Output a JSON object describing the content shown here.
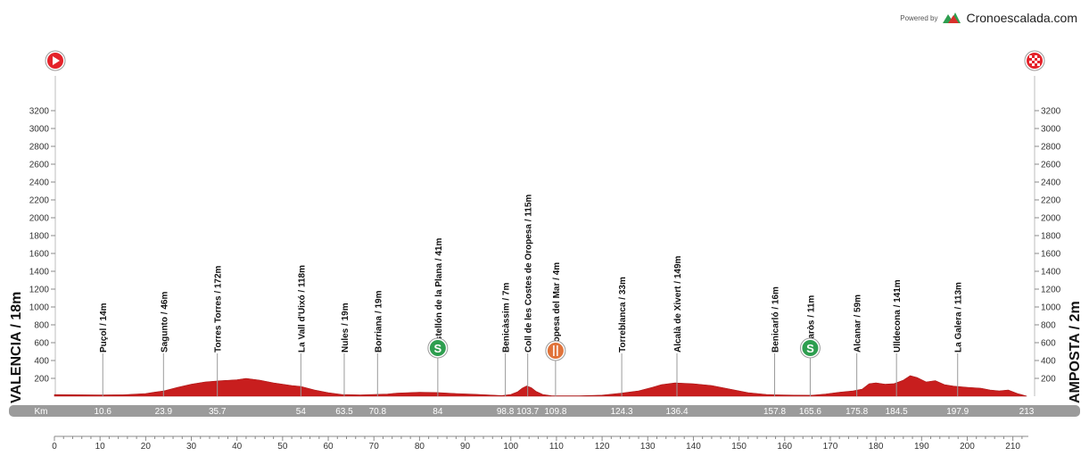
{
  "brand": {
    "powered_by": "Powered by",
    "name": "Cronoescalada.com"
  },
  "chart_data": {
    "type": "area",
    "title": "",
    "start_label": "VALENCIA / 18m",
    "finish_label": "AMPOSTA / 2m",
    "km_band_label": "Km",
    "elevation_unit": "m",
    "colors": {
      "profile": "#c81e1e",
      "band": "#9b9b9b",
      "sprint": "#2e9e4f",
      "food": "#e0733a",
      "start_icon": "#e4232b"
    },
    "xlim": [
      0,
      213
    ],
    "ylim": [
      0,
      3400
    ],
    "x_ticks": [
      0,
      10,
      20,
      30,
      40,
      50,
      60,
      70,
      80,
      90,
      100,
      110,
      120,
      130,
      140,
      150,
      160,
      170,
      180,
      190,
      200,
      210
    ],
    "y_ticks": [
      200,
      400,
      600,
      800,
      1000,
      1200,
      1400,
      1600,
      1800,
      2000,
      2200,
      2400,
      2600,
      2800,
      3000,
      3200
    ],
    "km_markers": [
      "10.6",
      "23.9",
      "35.7",
      "54",
      "63.5",
      "70.8",
      "84",
      "98.8",
      "103.7",
      "109.8",
      "124.3",
      "136.4",
      "157.8",
      "165.6",
      "175.8",
      "184.5",
      "197.9",
      "213"
    ],
    "waypoints": [
      {
        "km": 10.6,
        "label": "Puçol / 14m",
        "icon": ""
      },
      {
        "km": 23.9,
        "label": "Sagunto / 46m",
        "icon": ""
      },
      {
        "km": 35.7,
        "label": "Torres Torres / 172m",
        "icon": ""
      },
      {
        "km": 54,
        "label": "La Vall d'Uixó / 118m",
        "icon": ""
      },
      {
        "km": 63.5,
        "label": "Nules / 19m",
        "icon": ""
      },
      {
        "km": 70.8,
        "label": "Borriana / 19m",
        "icon": ""
      },
      {
        "km": 84,
        "label": "Castellón de la Plana / 41m",
        "icon": "sprint"
      },
      {
        "km": 98.8,
        "label": "Benicàssim / 7m",
        "icon": ""
      },
      {
        "km": 103.7,
        "label": "Coll de les Costes de Oropesa / 115m",
        "icon": ""
      },
      {
        "km": 109.8,
        "label": "Oropesa del Mar / 4m",
        "icon": "food"
      },
      {
        "km": 124.3,
        "label": "Torreblanca / 33m",
        "icon": ""
      },
      {
        "km": 136.4,
        "label": "Alcalà de Xivert / 149m",
        "icon": ""
      },
      {
        "km": 157.8,
        "label": "Benicarló / 16m",
        "icon": ""
      },
      {
        "km": 165.6,
        "label": "Vinaròs / 11m",
        "icon": "sprint"
      },
      {
        "km": 175.8,
        "label": "Alcanar / 59m",
        "icon": ""
      },
      {
        "km": 184.5,
        "label": "Ulldecona / 141m",
        "icon": ""
      },
      {
        "km": 197.9,
        "label": "La Galera / 113m",
        "icon": ""
      }
    ],
    "profile": {
      "x": [
        0,
        10,
        15,
        20,
        22,
        24,
        27,
        30,
        33,
        36,
        40,
        42,
        45,
        48,
        52,
        54,
        57,
        60,
        63,
        67,
        70,
        73,
        75,
        80,
        84,
        88,
        92,
        95,
        98,
        100,
        101.5,
        102.5,
        103.5,
        104.5,
        105.5,
        107,
        109,
        115,
        120,
        124,
        128,
        131,
        133,
        136,
        140,
        144,
        148,
        152,
        156,
        158,
        162,
        166,
        169,
        172,
        175,
        177,
        178.5,
        180,
        182,
        184,
        186,
        187.5,
        189,
        191,
        193,
        195,
        197,
        200,
        203,
        205,
        207,
        209,
        211,
        213
      ],
      "y": [
        18,
        14,
        16,
        30,
        46,
        60,
        100,
        135,
        160,
        172,
        185,
        200,
        180,
        150,
        120,
        110,
        70,
        40,
        19,
        15,
        19,
        25,
        35,
        45,
        41,
        30,
        22,
        15,
        7,
        20,
        50,
        90,
        115,
        95,
        55,
        20,
        4,
        4,
        12,
        33,
        60,
        100,
        130,
        149,
        140,
        120,
        80,
        40,
        20,
        16,
        12,
        11,
        25,
        45,
        59,
        80,
        140,
        150,
        135,
        141,
        180,
        230,
        210,
        160,
        175,
        130,
        113,
        100,
        90,
        70,
        60,
        70,
        30,
        2
      ]
    }
  }
}
